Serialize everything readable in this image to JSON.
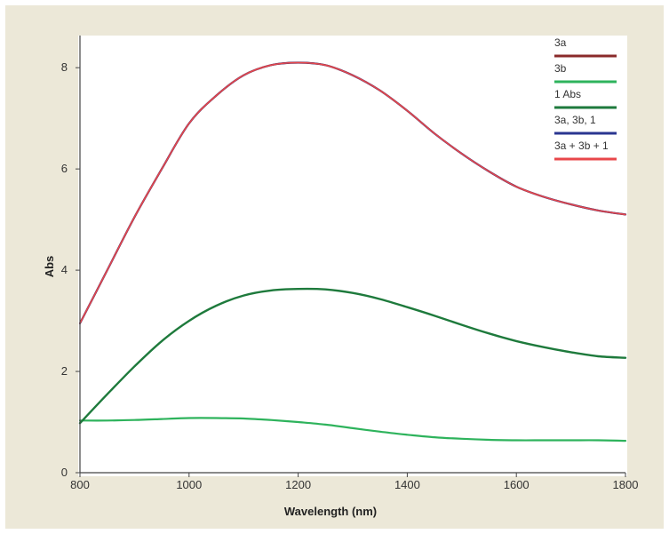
{
  "chart_data": {
    "type": "line",
    "xlabel": "Wavelength (nm)",
    "ylabel": "Abs",
    "xlim": [
      800,
      1800
    ],
    "ylim": [
      0,
      8.6
    ],
    "xticks": [
      800,
      1000,
      1200,
      1400,
      1600,
      1800
    ],
    "yticks": [
      0,
      2,
      4,
      6,
      8
    ],
    "grid": false,
    "legend_position": "top-right",
    "x": [
      800,
      850,
      900,
      950,
      1000,
      1050,
      1100,
      1150,
      1200,
      1250,
      1300,
      1350,
      1400,
      1450,
      1500,
      1550,
      1600,
      1650,
      1700,
      1750,
      1800
    ],
    "series": [
      {
        "name": "3a",
        "color": "#8a2a2a",
        "values": [
          2.95,
          4.0,
          5.05,
          6.0,
          6.9,
          7.45,
          7.85,
          8.05,
          8.1,
          8.05,
          7.85,
          7.55,
          7.15,
          6.7,
          6.3,
          5.95,
          5.65,
          5.45,
          5.3,
          5.18,
          5.1
        ]
      },
      {
        "name": "3b",
        "color": "#2eb35c",
        "values": [
          1.03,
          1.03,
          1.04,
          1.06,
          1.08,
          1.08,
          1.07,
          1.04,
          1.0,
          0.95,
          0.88,
          0.81,
          0.75,
          0.7,
          0.67,
          0.65,
          0.64,
          0.64,
          0.64,
          0.64,
          0.63
        ]
      },
      {
        "name": "1 Abs",
        "color": "#1e7a3c",
        "values": [
          0.98,
          1.55,
          2.1,
          2.6,
          3.0,
          3.3,
          3.5,
          3.6,
          3.63,
          3.62,
          3.55,
          3.43,
          3.27,
          3.1,
          2.92,
          2.75,
          2.6,
          2.48,
          2.38,
          2.3,
          2.27
        ]
      },
      {
        "name": "3a, 3b, 1",
        "color": "#2a3590",
        "values": [
          2.95,
          4.0,
          5.05,
          6.0,
          6.9,
          7.45,
          7.85,
          8.05,
          8.1,
          8.05,
          7.85,
          7.55,
          7.15,
          6.7,
          6.3,
          5.95,
          5.65,
          5.45,
          5.3,
          5.18,
          5.1
        ]
      },
      {
        "name": "3a + 3b + 1",
        "color": "#e8474a",
        "values": [
          2.95,
          4.0,
          5.05,
          6.0,
          6.9,
          7.45,
          7.85,
          8.05,
          8.1,
          8.05,
          7.85,
          7.55,
          7.15,
          6.7,
          6.3,
          5.95,
          5.65,
          5.45,
          5.3,
          5.18,
          5.1
        ]
      }
    ]
  }
}
